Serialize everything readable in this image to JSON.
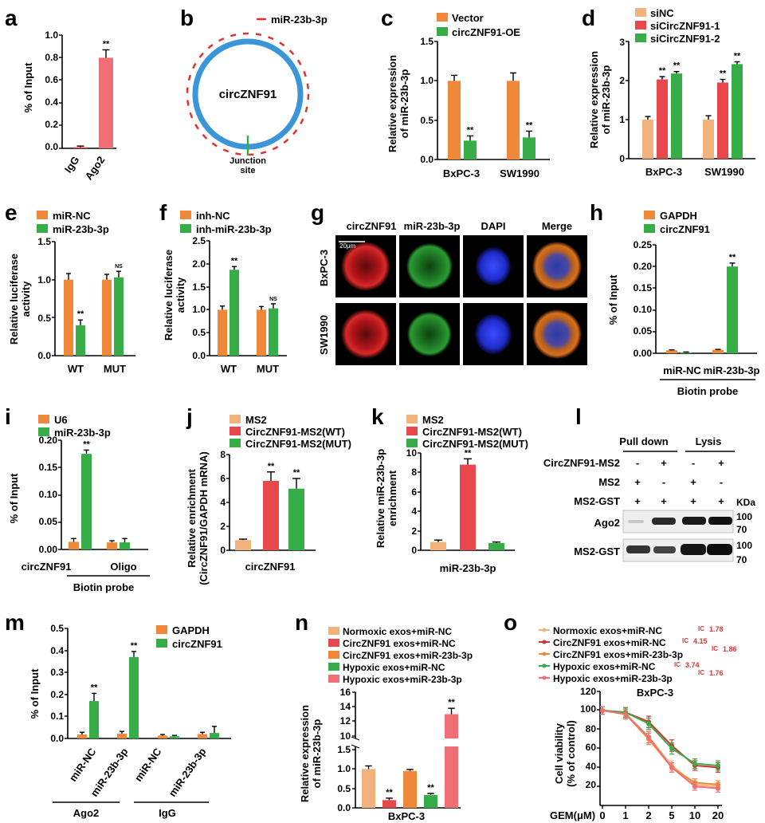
{
  "colors": {
    "orange": "#f0883a",
    "red": "#e8474b",
    "green": "#37ad48",
    "pink": "#ef6f74",
    "tan": "#f1b27c",
    "blue": "#3a96d8",
    "darkred": "#d92c2c",
    "darkgreen": "#1f8b38"
  },
  "panels": {
    "a": {
      "letter": "a",
      "ylabel": "% of Input",
      "ticks": [
        "1.0",
        "0.8",
        "0.6",
        "0.4",
        "0.2",
        "0.0"
      ]
    },
    "b": {
      "letter": "b",
      "legend": "miR-23b-3p",
      "circle_label": "circZNF91",
      "junction_line1": "Junction",
      "junction_line2": "site"
    },
    "c": {
      "letter": "c",
      "ylabel1": "Relative expression",
      "ylabel2": "of miR-23b-3p",
      "ticks": [
        "1.5",
        "1.0",
        "0.5",
        "0.0"
      ]
    },
    "d": {
      "letter": "d",
      "ylabel1": "Relative expression",
      "ylabel2": "of miR-23b-3p",
      "ticks": [
        "3",
        "2",
        "1",
        "0"
      ]
    },
    "e": {
      "letter": "e",
      "ylabel1": "Relative luciferase",
      "ylabel2": "activity",
      "ticks": [
        "1.5",
        "1.0",
        "0.5",
        "0.0"
      ]
    },
    "f": {
      "letter": "f",
      "ylabel1": "Relative luciferase",
      "ylabel2": "activity",
      "ticks": [
        "2.5",
        "2.0",
        "1.5",
        "1.0",
        "0.5",
        "0.0"
      ]
    },
    "g": {
      "letter": "g",
      "col1": "circZNF91",
      "col2": "miR-23b-3p",
      "col3": "DAPI",
      "col4": "Merge",
      "row1": "BxPC-3",
      "row2": "SW1990",
      "scale": "20μm"
    },
    "h": {
      "letter": "h",
      "ylabel": "% of Input",
      "ticks": [
        "0.25",
        "0.20",
        "0.15",
        "0.10",
        "0.05",
        "0.00"
      ],
      "group": "Biotin probe"
    },
    "i": {
      "letter": "i",
      "ylabel": "% of Input",
      "ticks": [
        "0.20",
        "0.15",
        "0.10",
        "0.05",
        "0.00"
      ],
      "group": "Biotin probe"
    },
    "j": {
      "letter": "j",
      "ylabel1": "Relative enrichment",
      "ylabel2": "(CircZNF91/GAPDH mRNA)",
      "ticks": [
        "8",
        "6",
        "4",
        "2",
        "0"
      ]
    },
    "k": {
      "letter": "k",
      "ylabel1": "Relative miR-23b-3p",
      "ylabel2": "enrichment",
      "ticks": [
        "10",
        "8",
        "6",
        "4",
        "2",
        "0"
      ]
    },
    "l": {
      "letter": "l",
      "pull_down": "Pull down",
      "lysis": "Lysis",
      "row1": "CircZNF91-MS2",
      "row2": "MS2",
      "row3": "MS2-GST",
      "kda": "KDa",
      "ago2": "Ago2",
      "ms2gst": "MS2-GST",
      "marker100": "100",
      "marker70": "70",
      "plus": "+",
      "minus": "-"
    },
    "m": {
      "letter": "m",
      "ylabel": "% of Input",
      "ticks": [
        "0.5",
        "0.4",
        "0.3",
        "0.2",
        "0.1",
        "0.0"
      ],
      "group1": "Ago2",
      "group2": "IgG"
    },
    "n": {
      "letter": "n",
      "ylabel1": "Relative expression",
      "ylabel2": "of miR-23b-3p",
      "ticks_top": [
        "16",
        "14",
        "12",
        "10"
      ],
      "ticks_bottom": [
        "1.5",
        "1.0",
        "0.5",
        "0.0"
      ],
      "xlabel": "BxPC-3"
    },
    "o": {
      "letter": "o",
      "ylabel1": "Cell viability",
      "ylabel2": "(% of control)",
      "title": "BxPC-3",
      "xlabel": "GEM(μM)",
      "ticks": [
        "120",
        "100",
        "80",
        "60",
        "40",
        "20"
      ],
      "xticks": [
        "0",
        "1",
        "2",
        "5",
        "10",
        "20"
      ],
      "ic_label": "IC"
    }
  },
  "chart_data": [
    {
      "panel": "a",
      "type": "bar",
      "categories": [
        "IgG",
        "Ago2"
      ],
      "values": [
        0.01,
        0.8
      ],
      "errors": [
        0.01,
        0.07
      ],
      "sig": [
        "",
        "**"
      ],
      "ylim": [
        0,
        1.0
      ],
      "ylabel": "% of Input"
    },
    {
      "panel": "c",
      "type": "bar",
      "categories": [
        "BxPC-3",
        "SW1990"
      ],
      "series": [
        {
          "name": "Vector",
          "values": [
            1.0,
            1.0
          ],
          "errors": [
            0.07,
            0.1
          ],
          "sig": [
            "",
            ""
          ]
        },
        {
          "name": "circZNF91-OE",
          "values": [
            0.24,
            0.28
          ],
          "errors": [
            0.06,
            0.08
          ],
          "sig": [
            "**",
            "**"
          ]
        }
      ],
      "ylim": [
        0,
        1.5
      ],
      "ylabel": "Relative expression of miR-23b-3p"
    },
    {
      "panel": "d",
      "type": "bar",
      "categories": [
        "BxPC-3",
        "SW1990"
      ],
      "series": [
        {
          "name": "siNC",
          "values": [
            1.0,
            1.0
          ],
          "errors": [
            0.08,
            0.1
          ],
          "sig": [
            "",
            ""
          ]
        },
        {
          "name": "siCircZNF91-1",
          "values": [
            2.03,
            1.95
          ],
          "errors": [
            0.07,
            0.08
          ],
          "sig": [
            "**",
            "**"
          ]
        },
        {
          "name": "siCircZNF91-2",
          "values": [
            2.18,
            2.42
          ],
          "errors": [
            0.05,
            0.06
          ],
          "sig": [
            "**",
            "**"
          ]
        }
      ],
      "ylim": [
        0,
        3
      ],
      "ylabel": "Relative expression of miR-23b-3p"
    },
    {
      "panel": "e",
      "type": "bar",
      "categories": [
        "WT",
        "MUT"
      ],
      "series": [
        {
          "name": "miR-NC",
          "values": [
            1.0,
            1.0
          ],
          "errors": [
            0.08,
            0.07
          ],
          "sig": [
            "",
            ""
          ]
        },
        {
          "name": "miR-23b-3p",
          "values": [
            0.4,
            1.03
          ],
          "errors": [
            0.07,
            0.08
          ],
          "sig": [
            "**",
            "NS"
          ]
        }
      ],
      "ylim": [
        0,
        1.5
      ],
      "ylabel": "Relative luciferase activity"
    },
    {
      "panel": "f",
      "type": "bar",
      "categories": [
        "WT",
        "MUT"
      ],
      "series": [
        {
          "name": "inh-NC",
          "values": [
            1.0,
            1.0
          ],
          "errors": [
            0.08,
            0.07
          ],
          "sig": [
            "",
            ""
          ]
        },
        {
          "name": "inh-miR-23b-3p",
          "values": [
            1.87,
            1.03
          ],
          "errors": [
            0.07,
            0.1
          ],
          "sig": [
            "**",
            "NS"
          ]
        }
      ],
      "ylim": [
        0,
        2.5
      ],
      "ylabel": "Relative luciferase activity"
    },
    {
      "panel": "h",
      "type": "bar",
      "categories": [
        "miR-NC",
        "miR-23b-3p"
      ],
      "series": [
        {
          "name": "GAPDH",
          "values": [
            0.007,
            0.008
          ],
          "errors": [
            0.001,
            0.001
          ],
          "sig": [
            "",
            ""
          ]
        },
        {
          "name": "circZNF91",
          "values": [
            0.002,
            0.2
          ],
          "errors": [
            0.001,
            0.008
          ],
          "sig": [
            "",
            "**"
          ]
        }
      ],
      "ylim": [
        0,
        0.25
      ],
      "ylabel": "% of Input"
    },
    {
      "panel": "i",
      "type": "bar",
      "categories": [
        "circZNF91",
        "Oligo"
      ],
      "series": [
        {
          "name": "U6",
          "values": [
            0.014,
            0.013
          ],
          "errors": [
            0.006,
            0.003
          ],
          "sig": [
            "",
            ""
          ]
        },
        {
          "name": "miR-23b-3p",
          "values": [
            0.175,
            0.013
          ],
          "errors": [
            0.007,
            0.007
          ],
          "sig": [
            "**",
            ""
          ]
        }
      ],
      "ylim": [
        0,
        0.2
      ],
      "ylabel": "% of Input"
    },
    {
      "panel": "j",
      "type": "bar",
      "categories": [
        "circZNF91"
      ],
      "series": [
        {
          "name": "MS2",
          "values": [
            0.85
          ],
          "errors": [
            0.08
          ],
          "sig": [
            ""
          ]
        },
        {
          "name": "CircZNF91-MS2(WT)",
          "values": [
            5.8
          ],
          "errors": [
            0.75
          ],
          "sig": [
            "**"
          ]
        },
        {
          "name": "CircZNF91-MS2(MUT)",
          "values": [
            5.15
          ],
          "errors": [
            0.85
          ],
          "sig": [
            "**"
          ]
        }
      ],
      "ylim": [
        0,
        8
      ],
      "ylabel": "Relative enrichment (CircZNF91/GAPDH mRNA)"
    },
    {
      "panel": "k",
      "type": "bar",
      "categories": [
        "miR-23b-3p"
      ],
      "series": [
        {
          "name": "MS2",
          "values": [
            0.85
          ],
          "errors": [
            0.2
          ],
          "sig": [
            ""
          ]
        },
        {
          "name": "CircZNF91-MS2(WT)",
          "values": [
            8.8
          ],
          "errors": [
            0.6
          ],
          "sig": [
            "**"
          ]
        },
        {
          "name": "CircZNF91-MS2(MUT)",
          "values": [
            0.75
          ],
          "errors": [
            0.1
          ],
          "sig": [
            ""
          ]
        }
      ],
      "ylim": [
        0,
        10
      ],
      "ylabel": "Relative miR-23b-3p enrichment"
    },
    {
      "panel": "m",
      "type": "bar",
      "categories": [
        "miR-NC",
        "miR-23b-3p",
        "miR-NC",
        "miR-23b-3p"
      ],
      "series": [
        {
          "name": "GAPDH",
          "values": [
            0.018,
            0.022,
            0.013,
            0.02
          ],
          "errors": [
            0.01,
            0.01,
            0.005,
            0.008
          ],
          "sig": [
            "",
            "",
            "",
            ""
          ]
        },
        {
          "name": "circZNF91",
          "values": [
            0.17,
            0.37,
            0.01,
            0.025
          ],
          "errors": [
            0.035,
            0.025,
            0.004,
            0.03
          ],
          "sig": [
            "**",
            "**",
            "",
            ""
          ]
        }
      ],
      "ylim": [
        0,
        0.5
      ],
      "ylabel": "% of Input"
    },
    {
      "panel": "n",
      "type": "bar",
      "categories": [
        "Normoxic exos+miR-NC",
        "CircZNF91 exos+miR-NC",
        "CircZNF91 exos+miR-23b-3p",
        "Hypoxic exos+miR-NC",
        "Hypoxic exos+miR-23b-3p"
      ],
      "values": [
        1.0,
        0.2,
        0.95,
        0.33,
        13.0
      ],
      "errors": [
        0.08,
        0.05,
        0.04,
        0.04,
        0.8
      ],
      "sig": [
        "",
        "**",
        "",
        "**",
        "**"
      ],
      "axis_break": [
        1.5,
        10
      ],
      "ylim": [
        0,
        16
      ],
      "ylabel": "Relative expression of miR-23b-3p"
    },
    {
      "panel": "o",
      "type": "line",
      "title": "BxPC-3",
      "x": [
        "0",
        "1",
        "2",
        "5",
        "10",
        "20"
      ],
      "series": [
        {
          "name": "Normoxic exos+miR-NC",
          "ic50": "1.78",
          "values": [
            100,
            97,
            72,
            42,
            22,
            20
          ],
          "errors": [
            4,
            5,
            6,
            5,
            4,
            4
          ]
        },
        {
          "name": "CircZNF91 exos+miR-NC",
          "ic50": "4.15",
          "values": [
            100,
            98,
            88,
            63,
            42,
            40
          ],
          "errors": [
            4,
            5,
            6,
            6,
            5,
            5
          ]
        },
        {
          "name": "CircZNF91 exos+miR-23b-3p",
          "ic50": "1.86",
          "values": [
            100,
            96,
            70,
            40,
            24,
            22
          ],
          "errors": [
            4,
            5,
            6,
            5,
            4,
            4
          ]
        },
        {
          "name": "Hypoxic exos+miR-NC",
          "ic50": "3.74",
          "values": [
            100,
            98,
            86,
            60,
            44,
            42
          ],
          "errors": [
            4,
            5,
            6,
            6,
            5,
            5
          ]
        },
        {
          "name": "Hypoxic exos+miR-23b-3p",
          "ic50": "1.76",
          "values": [
            100,
            96,
            72,
            40,
            20,
            18
          ],
          "errors": [
            4,
            5,
            6,
            5,
            4,
            4
          ]
        }
      ],
      "ylim": [
        0,
        120
      ],
      "xlabel": "GEM(μM)",
      "ylabel": "Cell viability (% of control)"
    }
  ]
}
